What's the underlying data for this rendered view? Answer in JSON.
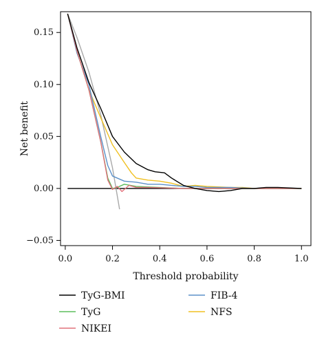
{
  "chart_data": {
    "type": "line",
    "title": "",
    "xlabel": "Threshold probability",
    "ylabel": "Net benefit",
    "xlim": [
      0,
      1
    ],
    "ylim": [
      -0.055,
      0.17
    ],
    "x_ticks": [
      "0.0",
      "0.2",
      "0.4",
      "0.6",
      "0.8",
      "1.0"
    ],
    "y_ticks": [
      "−0.05",
      "0.00",
      "0.05",
      "0.10",
      "0.15"
    ],
    "grid": false,
    "legend_position": "bottom",
    "references": [
      {
        "key": "treat_none",
        "color": "#000000",
        "points": [
          [
            0.01,
            0.0
          ],
          [
            1.0,
            0.0
          ]
        ]
      },
      {
        "key": "treat_all",
        "color": "#a8a8a8",
        "points": [
          [
            0.01,
            0.168
          ],
          [
            0.05,
            0.145
          ],
          [
            0.1,
            0.112
          ],
          [
            0.15,
            0.071
          ],
          [
            0.2,
            0.02
          ],
          [
            0.23,
            -0.02
          ]
        ]
      }
    ],
    "series": [
      {
        "name": "TyG-BMI",
        "color": "#000000",
        "points": [
          [
            0.01,
            0.168
          ],
          [
            0.05,
            0.135
          ],
          [
            0.1,
            0.102
          ],
          [
            0.15,
            0.077
          ],
          [
            0.2,
            0.05
          ],
          [
            0.25,
            0.035
          ],
          [
            0.3,
            0.024
          ],
          [
            0.35,
            0.018
          ],
          [
            0.38,
            0.016
          ],
          [
            0.42,
            0.015
          ],
          [
            0.45,
            0.01
          ],
          [
            0.5,
            0.003
          ],
          [
            0.55,
            0.0
          ],
          [
            0.6,
            -0.002
          ],
          [
            0.65,
            -0.003
          ],
          [
            0.7,
            -0.002
          ],
          [
            0.75,
            0.0
          ],
          [
            0.8,
            0.0
          ],
          [
            0.85,
            0.001
          ],
          [
            0.9,
            0.001
          ],
          [
            1.0,
            0.0
          ]
        ]
      },
      {
        "name": "TyG",
        "color": "#5cbd5c",
        "points": [
          [
            0.01,
            0.168
          ],
          [
            0.05,
            0.132
          ],
          [
            0.1,
            0.095
          ],
          [
            0.15,
            0.045
          ],
          [
            0.18,
            0.01
          ],
          [
            0.2,
            0.0
          ],
          [
            0.22,
            0.001
          ],
          [
            0.25,
            0.004
          ],
          [
            0.3,
            0.002
          ],
          [
            0.4,
            0.001
          ],
          [
            0.5,
            0.0
          ],
          [
            1.0,
            0.0
          ]
        ]
      },
      {
        "name": "NIKEI",
        "color": "#e0707a",
        "points": [
          [
            0.01,
            0.168
          ],
          [
            0.05,
            0.132
          ],
          [
            0.1,
            0.095
          ],
          [
            0.15,
            0.045
          ],
          [
            0.18,
            0.008
          ],
          [
            0.2,
            -0.001
          ],
          [
            0.22,
            0.002
          ],
          [
            0.24,
            -0.003
          ],
          [
            0.27,
            0.003
          ],
          [
            0.3,
            0.001
          ],
          [
            0.35,
            0.001
          ],
          [
            0.5,
            0.0
          ],
          [
            1.0,
            0.0
          ]
        ]
      },
      {
        "name": "FIB-4",
        "color": "#5b90c8",
        "points": [
          [
            0.01,
            0.168
          ],
          [
            0.05,
            0.13
          ],
          [
            0.1,
            0.1
          ],
          [
            0.15,
            0.05
          ],
          [
            0.18,
            0.022
          ],
          [
            0.2,
            0.012
          ],
          [
            0.25,
            0.007
          ],
          [
            0.3,
            0.006
          ],
          [
            0.35,
            0.004
          ],
          [
            0.4,
            0.004
          ],
          [
            0.45,
            0.003
          ],
          [
            0.5,
            0.002
          ],
          [
            0.55,
            0.002
          ],
          [
            0.6,
            0.001
          ],
          [
            0.7,
            0.001
          ],
          [
            0.8,
            0.0
          ],
          [
            1.0,
            0.0
          ]
        ]
      },
      {
        "name": "NFS",
        "color": "#f0c020",
        "points": [
          [
            0.01,
            0.168
          ],
          [
            0.05,
            0.132
          ],
          [
            0.1,
            0.095
          ],
          [
            0.15,
            0.068
          ],
          [
            0.2,
            0.042
          ],
          [
            0.25,
            0.025
          ],
          [
            0.28,
            0.015
          ],
          [
            0.3,
            0.01
          ],
          [
            0.35,
            0.008
          ],
          [
            0.4,
            0.007
          ],
          [
            0.45,
            0.005
          ],
          [
            0.5,
            0.002
          ],
          [
            0.55,
            0.003
          ],
          [
            0.6,
            0.002
          ],
          [
            0.7,
            0.001
          ],
          [
            0.75,
            0.001
          ],
          [
            0.8,
            0.0
          ],
          [
            1.0,
            0.0
          ]
        ]
      }
    ]
  }
}
